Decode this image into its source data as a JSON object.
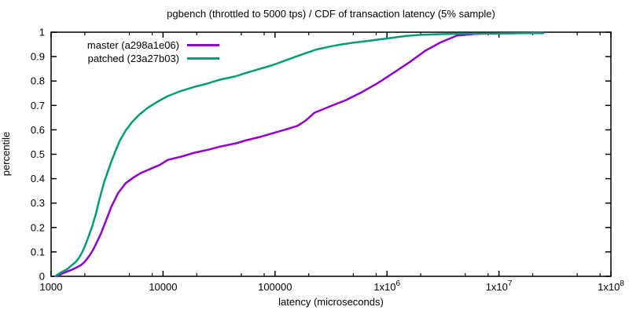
{
  "title": "pgbench (throttled to 5000 tps) / CDF of transaction latency (5% sample)",
  "chart_data": {
    "type": "line",
    "title": "pgbench (throttled to 5000 tps) / CDF of transaction latency (5% sample)",
    "xlabel": "latency (microseconds)",
    "ylabel": "percentile",
    "x_scale": "log10",
    "xlim": [
      1000,
      100000000
    ],
    "ylim": [
      0,
      1
    ],
    "grid": false,
    "legend_position": "top-left-inside",
    "background_color": "#ffffff",
    "axis_color": "#000000",
    "x_ticks": [
      {
        "value": 1000,
        "base": "1000",
        "sup": ""
      },
      {
        "value": 10000,
        "base": "10000",
        "sup": ""
      },
      {
        "value": 100000,
        "base": "100000",
        "sup": ""
      },
      {
        "value": 1000000,
        "base": "1x10",
        "sup": "6"
      },
      {
        "value": 10000000,
        "base": "1x10",
        "sup": "7"
      },
      {
        "value": 100000000,
        "base": "1x10",
        "sup": "8"
      }
    ],
    "x_minor_tick_multipliers": [
      2,
      5,
      8
    ],
    "y_ticks": [
      {
        "value": 0.0,
        "label": "0"
      },
      {
        "value": 0.1,
        "label": "0.1"
      },
      {
        "value": 0.2,
        "label": "0.2"
      },
      {
        "value": 0.3,
        "label": "0.3"
      },
      {
        "value": 0.4,
        "label": "0.4"
      },
      {
        "value": 0.5,
        "label": "0.5"
      },
      {
        "value": 0.6,
        "label": "0.6"
      },
      {
        "value": 0.7,
        "label": "0.7"
      },
      {
        "value": 0.8,
        "label": "0.8"
      },
      {
        "value": 0.9,
        "label": "0.9"
      },
      {
        "value": 1.0,
        "label": "1"
      }
    ],
    "series": [
      {
        "name": "master (a298a1e06)",
        "color": "#9400d3",
        "points": [
          [
            1130,
            0
          ],
          [
            1240,
            0.01
          ],
          [
            1400,
            0.02
          ],
          [
            1550,
            0.028
          ],
          [
            1700,
            0.037
          ],
          [
            1860,
            0.047
          ],
          [
            2000,
            0.06
          ],
          [
            2180,
            0.082
          ],
          [
            2350,
            0.105
          ],
          [
            2500,
            0.13
          ],
          [
            2790,
            0.176
          ],
          [
            3100,
            0.23
          ],
          [
            3450,
            0.285
          ],
          [
            3950,
            0.34
          ],
          [
            4650,
            0.382
          ],
          [
            5500,
            0.406
          ],
          [
            6400,
            0.424
          ],
          [
            8000,
            0.443
          ],
          [
            9500,
            0.458
          ],
          [
            11000,
            0.477
          ],
          [
            15000,
            0.492
          ],
          [
            19000,
            0.506
          ],
          [
            26000,
            0.52
          ],
          [
            32000,
            0.531
          ],
          [
            45000,
            0.545
          ],
          [
            56000,
            0.558
          ],
          [
            75000,
            0.572
          ],
          [
            95000,
            0.586
          ],
          [
            130000,
            0.604
          ],
          [
            160000,
            0.617
          ],
          [
            190000,
            0.64
          ],
          [
            225000,
            0.67
          ],
          [
            310000,
            0.696
          ],
          [
            430000,
            0.722
          ],
          [
            600000,
            0.755
          ],
          [
            830000,
            0.792
          ],
          [
            1150000,
            0.834
          ],
          [
            1600000,
            0.878
          ],
          [
            2200000,
            0.924
          ],
          [
            3000000,
            0.958
          ],
          [
            4200000,
            0.986
          ],
          [
            6000000,
            0.993
          ],
          [
            10000000,
            0.995
          ],
          [
            16000000,
            0.996
          ],
          [
            25000000,
            0.997
          ]
        ]
      },
      {
        "name": "patched (23a27b03)",
        "color": "#009e73",
        "points": [
          [
            1090,
            0
          ],
          [
            1150,
            0.008
          ],
          [
            1250,
            0.018
          ],
          [
            1380,
            0.028
          ],
          [
            1500,
            0.042
          ],
          [
            1670,
            0.06
          ],
          [
            1800,
            0.08
          ],
          [
            1910,
            0.102
          ],
          [
            2050,
            0.135
          ],
          [
            2180,
            0.168
          ],
          [
            2350,
            0.21
          ],
          [
            2500,
            0.253
          ],
          [
            2650,
            0.3
          ],
          [
            2790,
            0.34
          ],
          [
            3000,
            0.39
          ],
          [
            3190,
            0.425
          ],
          [
            3450,
            0.47
          ],
          [
            3750,
            0.512
          ],
          [
            4100,
            0.555
          ],
          [
            4650,
            0.598
          ],
          [
            5300,
            0.632
          ],
          [
            6100,
            0.661
          ],
          [
            7300,
            0.69
          ],
          [
            8900,
            0.715
          ],
          [
            11000,
            0.738
          ],
          [
            14000,
            0.757
          ],
          [
            19000,
            0.776
          ],
          [
            25000,
            0.79
          ],
          [
            32000,
            0.805
          ],
          [
            45000,
            0.82
          ],
          [
            55000,
            0.833
          ],
          [
            70000,
            0.847
          ],
          [
            95000,
            0.865
          ],
          [
            120000,
            0.882
          ],
          [
            160000,
            0.903
          ],
          [
            230000,
            0.928
          ],
          [
            300000,
            0.94
          ],
          [
            380000,
            0.949
          ],
          [
            500000,
            0.957
          ],
          [
            670000,
            0.964
          ],
          [
            850000,
            0.97
          ],
          [
            1100000,
            0.977
          ],
          [
            1500000,
            0.985
          ],
          [
            2000000,
            0.989
          ],
          [
            3000000,
            0.992
          ],
          [
            5000000,
            0.994
          ],
          [
            10000000,
            0.995
          ],
          [
            16000000,
            0.996
          ],
          [
            25000000,
            0.996
          ]
        ]
      }
    ]
  }
}
